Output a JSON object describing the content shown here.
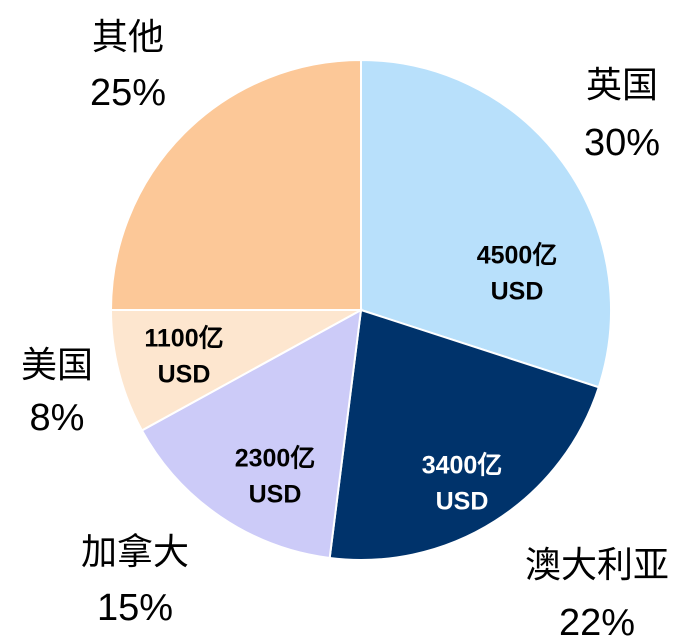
{
  "chart_data": {
    "type": "pie",
    "categories": [
      "英国",
      "澳大利亚",
      "加拿大",
      "美国",
      "其他"
    ],
    "values": [
      30,
      22,
      15,
      8,
      25
    ],
    "value_labels": [
      "30%",
      "22%",
      "15%",
      "8%",
      "25%"
    ],
    "inner_labels": [
      [
        "4500亿",
        "USD"
      ],
      [
        "3400亿",
        "USD"
      ],
      [
        "2300亿",
        "USD"
      ],
      [
        "1100亿",
        "USD"
      ],
      null
    ],
    "colors": [
      "#b8e0fb",
      "#00336b",
      "#cccbf8",
      "#fde6cf",
      "#fcc898"
    ]
  }
}
